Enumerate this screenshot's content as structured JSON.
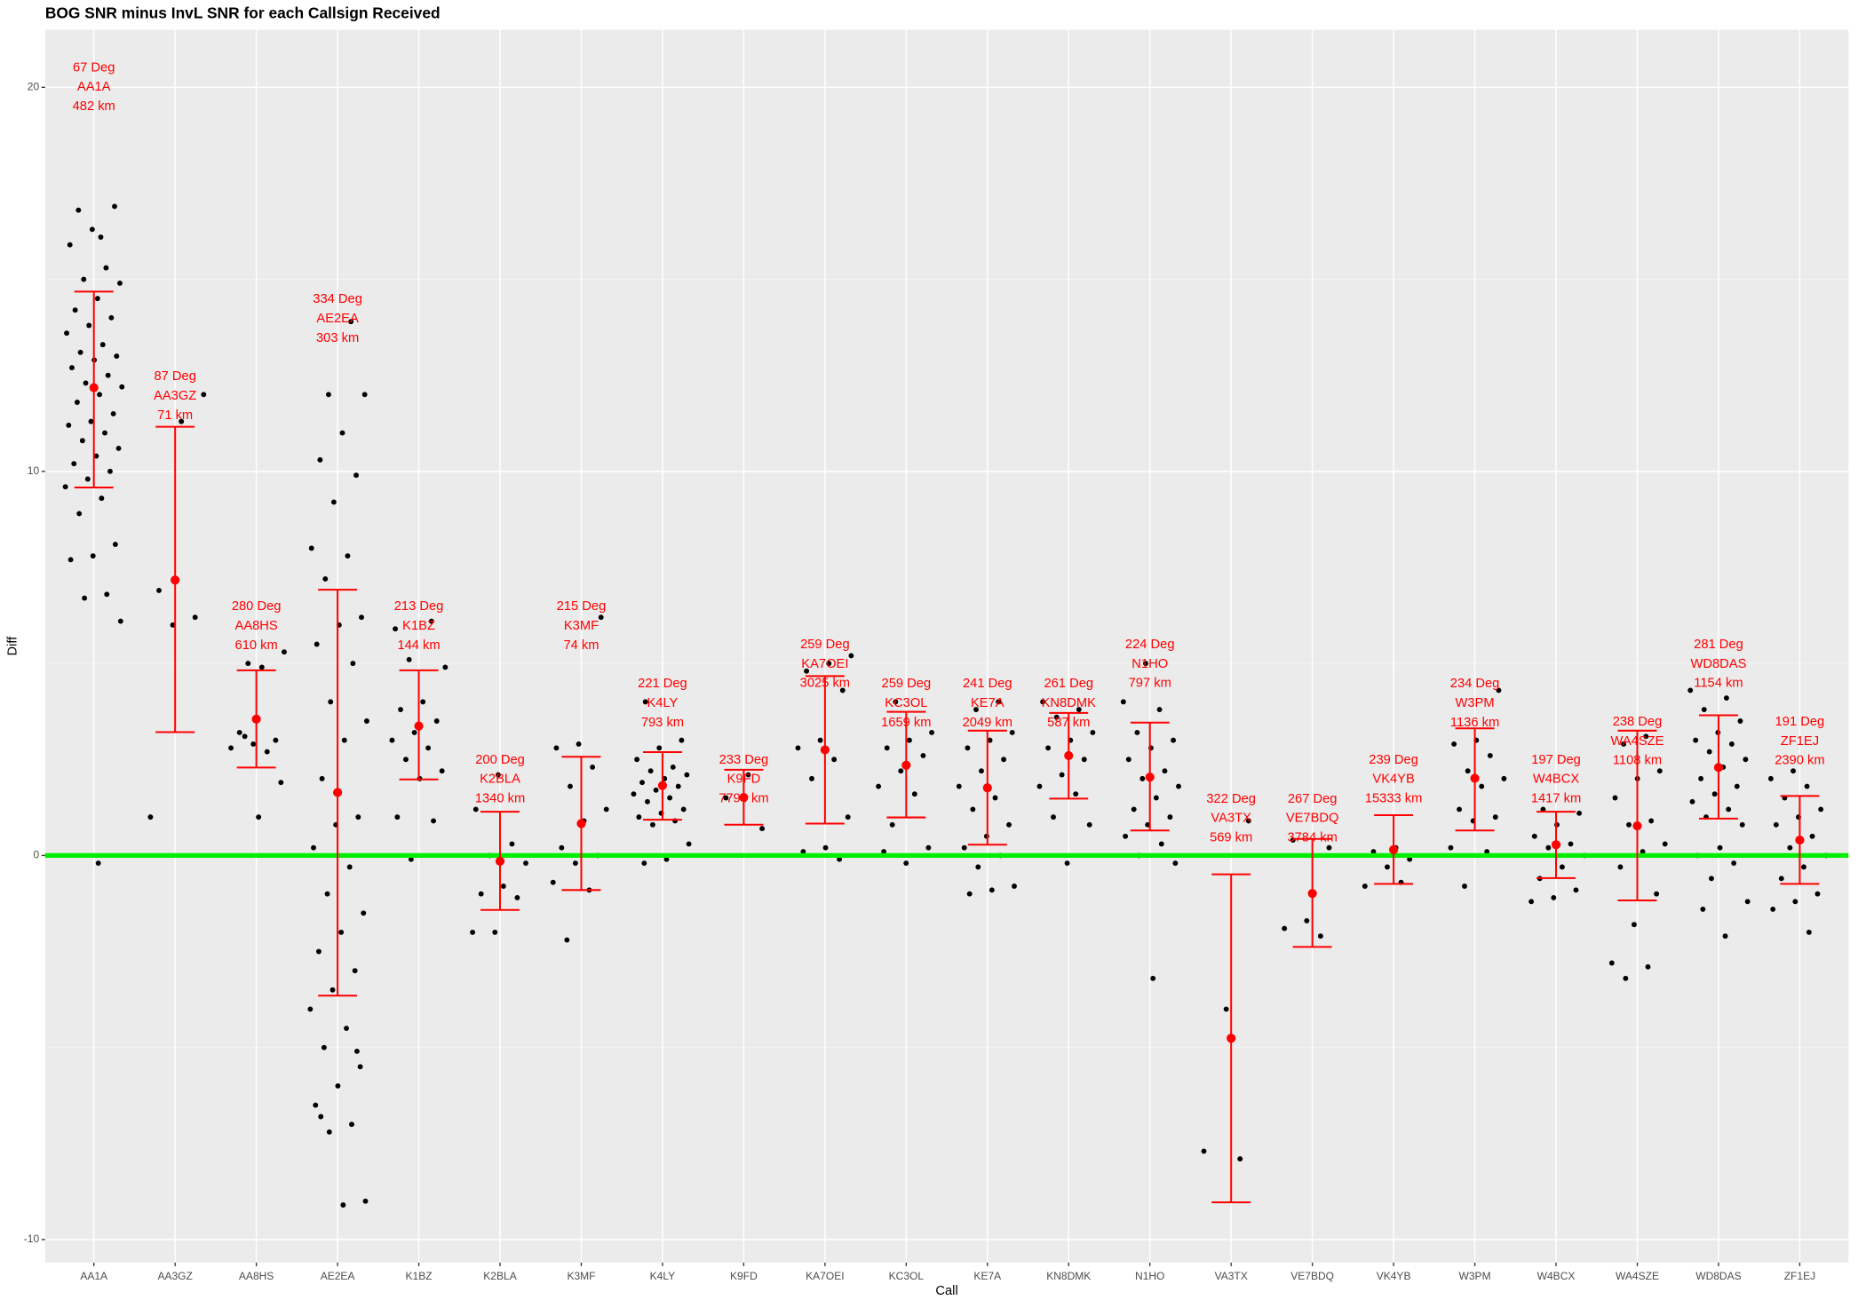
{
  "chart_data": {
    "type": "jitter_errorbar",
    "title": "BOG SNR minus InvL SNR for each Callsign Received",
    "x_label": "Call",
    "y_label": "Diff",
    "categories": [
      "AA1A",
      "AA3GZ",
      "AA8HS",
      "AE2EA",
      "K1BZ",
      "K2BLA",
      "K3MF",
      "K4LY",
      "K9FD",
      "KA7OEI",
      "KC3OL",
      "KE7A",
      "KN8DMK",
      "N1HO",
      "VA3TX",
      "VE7BDQ",
      "VK4YB",
      "W3PM",
      "W4BCX",
      "WA4SZE",
      "WD8DAS",
      "ZF1EJ"
    ],
    "means": [
      12.18,
      7.17,
      3.55,
      1.64,
      3.37,
      -0.15,
      0.83,
      1.82,
      1.51,
      2.75,
      2.35,
      1.76,
      2.6,
      2.04,
      -4.76,
      -0.99,
      0.15,
      2.01,
      0.28,
      0.77,
      2.29,
      0.4
    ],
    "lower": [
      9.58,
      3.21,
      2.29,
      -3.65,
      1.98,
      -1.42,
      -0.9,
      0.93,
      0.8,
      0.83,
      0.99,
      0.28,
      1.48,
      0.65,
      -9.03,
      -2.38,
      -0.74,
      0.65,
      -0.59,
      -1.17,
      0.96,
      -0.74
    ],
    "upper": [
      14.68,
      11.16,
      4.82,
      6.92,
      4.82,
      1.14,
      2.57,
      2.69,
      2.23,
      4.67,
      3.74,
      3.25,
      3.71,
      3.46,
      -0.49,
      0.43,
      1.05,
      3.31,
      1.14,
      3.25,
      3.65,
      1.55
    ],
    "labels": [
      [
        "67 Deg",
        "AA1A",
        "482 km"
      ],
      [
        "87 Deg",
        "AA3GZ",
        "71 km"
      ],
      [
        "280 Deg",
        "AA8HS",
        "610 km"
      ],
      [
        "334 Deg",
        "AE2EA",
        "303 km"
      ],
      [
        "213 Deg",
        "K1BZ",
        "144 km"
      ],
      [
        "200 Deg",
        "K2BLA",
        "1340 km"
      ],
      [
        "215 Deg",
        "K3MF",
        "74 km"
      ],
      [
        "221 Deg",
        "K4LY",
        "793 km"
      ],
      [
        "233 Deg",
        "K9FD",
        "7794 km"
      ],
      [
        "259 Deg",
        "KA7OEI",
        "3025 km"
      ],
      [
        "259 Deg",
        "KC3OL",
        "1659 km"
      ],
      [
        "241 Deg",
        "KE7A",
        "2049 km"
      ],
      [
        "261 Deg",
        "KN8DMK",
        "587 km"
      ],
      [
        "224 Deg",
        "N1HO",
        "797 km"
      ],
      [
        "322 Deg",
        "VA3TX",
        "569 km"
      ],
      [
        "267 Deg",
        "VE7BDQ",
        "3784 km"
      ],
      [
        "239 Deg",
        "VK4YB",
        "15333 km"
      ],
      [
        "234 Deg",
        "W3PM",
        "1136 km"
      ],
      [
        "197 Deg",
        "W4BCX",
        "1417 km"
      ],
      [
        "238 Deg",
        "WA4SZE",
        "1108 km"
      ],
      [
        "281 Deg",
        "WD8DAS",
        "1154 km"
      ],
      [
        "191 Deg",
        "ZF1EJ",
        "2390 km"
      ]
    ],
    "label_y": [
      20.0,
      11.96,
      5.97,
      13.97,
      5.97,
      1.98,
      5.97,
      3.96,
      1.98,
      4.98,
      3.96,
      3.96,
      3.96,
      4.98,
      0.96,
      0.96,
      1.98,
      3.96,
      1.98,
      2.97,
      4.98,
      2.97
    ],
    "points": [
      [
        16.1,
        16.8,
        16.9,
        16.3,
        15.9,
        15.3,
        15.0,
        14.9,
        14.5,
        14.2,
        14.0,
        13.8,
        13.6,
        13.3,
        13.1,
        13.0,
        12.9,
        12.7,
        12.5,
        12.3,
        12.2,
        12.0,
        11.8,
        11.5,
        11.3,
        11.2,
        11.0,
        10.8,
        10.6,
        10.4,
        10.2,
        10.0,
        9.8,
        9.6,
        9.3,
        8.9,
        8.1,
        7.8,
        7.7,
        6.8,
        6.7,
        6.1,
        -0.2
      ],
      [
        12.0,
        11.3,
        6.9,
        6.2,
        6.0,
        1.0
      ],
      [
        5.0,
        5.3,
        4.9,
        3.2,
        3.0,
        2.9,
        2.8,
        2.7,
        3.1,
        1.9,
        1.0
      ],
      [
        13.9,
        12.0,
        12.0,
        11.0,
        10.3,
        9.9,
        9.2,
        8.0,
        7.8,
        7.2,
        6.2,
        6.0,
        5.5,
        5.0,
        4.0,
        3.5,
        3.0,
        2.0,
        1.0,
        0.8,
        0.2,
        -0.3,
        -1.0,
        -1.5,
        -2.0,
        -2.5,
        -3.0,
        -3.5,
        -4.0,
        -4.5,
        -5.0,
        -5.5,
        -6.0,
        -6.5,
        -7.0,
        -7.2,
        -9.0,
        -9.1,
        -6.8,
        -5.1
      ],
      [
        5.9,
        6.1,
        5.1,
        4.9,
        4.0,
        3.8,
        3.5,
        3.2,
        3.0,
        2.8,
        2.5,
        2.2,
        2.0,
        1.0,
        0.9,
        -0.1
      ],
      [
        2.1,
        1.2,
        0.3,
        0.0,
        -0.2,
        -0.8,
        -1.0,
        -1.1,
        -2.0,
        -2.0
      ],
      [
        6.2,
        2.9,
        2.8,
        2.3,
        1.8,
        1.2,
        0.9,
        0.2,
        0.0,
        -0.2,
        -0.7,
        -0.9,
        -2.2
      ],
      [
        4.0,
        3.0,
        2.8,
        2.5,
        2.3,
        2.2,
        2.1,
        2.0,
        1.9,
        1.8,
        1.7,
        1.6,
        1.5,
        1.4,
        1.2,
        1.1,
        1.0,
        0.9,
        0.8,
        0.3,
        -0.1,
        -0.2
      ],
      [
        2.1,
        1.5,
        0.7
      ],
      [
        5.2,
        5.0,
        4.8,
        4.3,
        3.0,
        2.8,
        2.5,
        2.0,
        1.0,
        0.2,
        0.1,
        -0.1
      ],
      [
        4.0,
        3.2,
        3.0,
        2.8,
        2.6,
        2.2,
        1.8,
        1.6,
        0.8,
        0.2,
        -0.2,
        0.1
      ],
      [
        4.0,
        3.8,
        3.2,
        3.0,
        2.8,
        2.5,
        2.2,
        1.8,
        1.5,
        1.2,
        0.8,
        0.5,
        0.2,
        0.0,
        -0.3,
        -0.8,
        -0.9,
        -1.0
      ],
      [
        4.0,
        3.8,
        3.6,
        3.2,
        3.0,
        2.8,
        2.5,
        2.1,
        1.8,
        1.6,
        1.0,
        0.8,
        -0.2
      ],
      [
        5.0,
        4.0,
        3.8,
        3.2,
        3.0,
        2.8,
        2.5,
        2.2,
        2.0,
        1.8,
        1.5,
        1.2,
        1.0,
        0.8,
        0.5,
        0.3,
        0.0,
        -0.2,
        -3.2
      ],
      [
        0.9,
        -4.0,
        -7.7,
        -7.9
      ],
      [
        0.4,
        0.2,
        -1.7,
        -1.9,
        -2.1
      ],
      [
        0.2,
        0.1,
        -0.1,
        -0.3,
        -0.8,
        -0.7
      ],
      [
        4.3,
        3.0,
        2.9,
        2.6,
        2.2,
        2.0,
        1.8,
        1.2,
        1.0,
        0.9,
        0.2,
        0.1,
        -0.8
      ],
      [
        1.2,
        1.1,
        0.8,
        0.5,
        0.3,
        0.2,
        0.0,
        -0.3,
        -0.6,
        -0.9,
        -1.1,
        -1.2
      ],
      [
        3.1,
        2.9,
        2.2,
        2.0,
        1.5,
        0.9,
        0.8,
        0.3,
        0.1,
        -0.3,
        -1.0,
        -1.8,
        -2.8,
        -2.9,
        -3.2
      ],
      [
        4.3,
        4.1,
        3.8,
        3.5,
        3.2,
        3.0,
        2.9,
        2.7,
        2.5,
        2.3,
        2.0,
        1.8,
        1.6,
        1.4,
        1.2,
        1.0,
        0.8,
        0.2,
        0.0,
        -0.2,
        -0.6,
        -1.2,
        -2.1,
        -1.4
      ],
      [
        2.2,
        2.0,
        1.8,
        1.5,
        1.2,
        1.0,
        0.8,
        0.5,
        0.2,
        0.0,
        -0.3,
        -0.6,
        -1.0,
        -1.2,
        -1.4,
        -2.0
      ]
    ],
    "point_color": "#000000",
    "summary_color": "#ff0000",
    "hline": {
      "value": 0,
      "color": "#00ee00"
    },
    "ylim": [
      -10.6,
      21.5
    ],
    "yticks": [
      -10,
      0,
      10,
      20
    ],
    "minor_yticks": [
      -5,
      5,
      15
    ],
    "grid": true
  }
}
